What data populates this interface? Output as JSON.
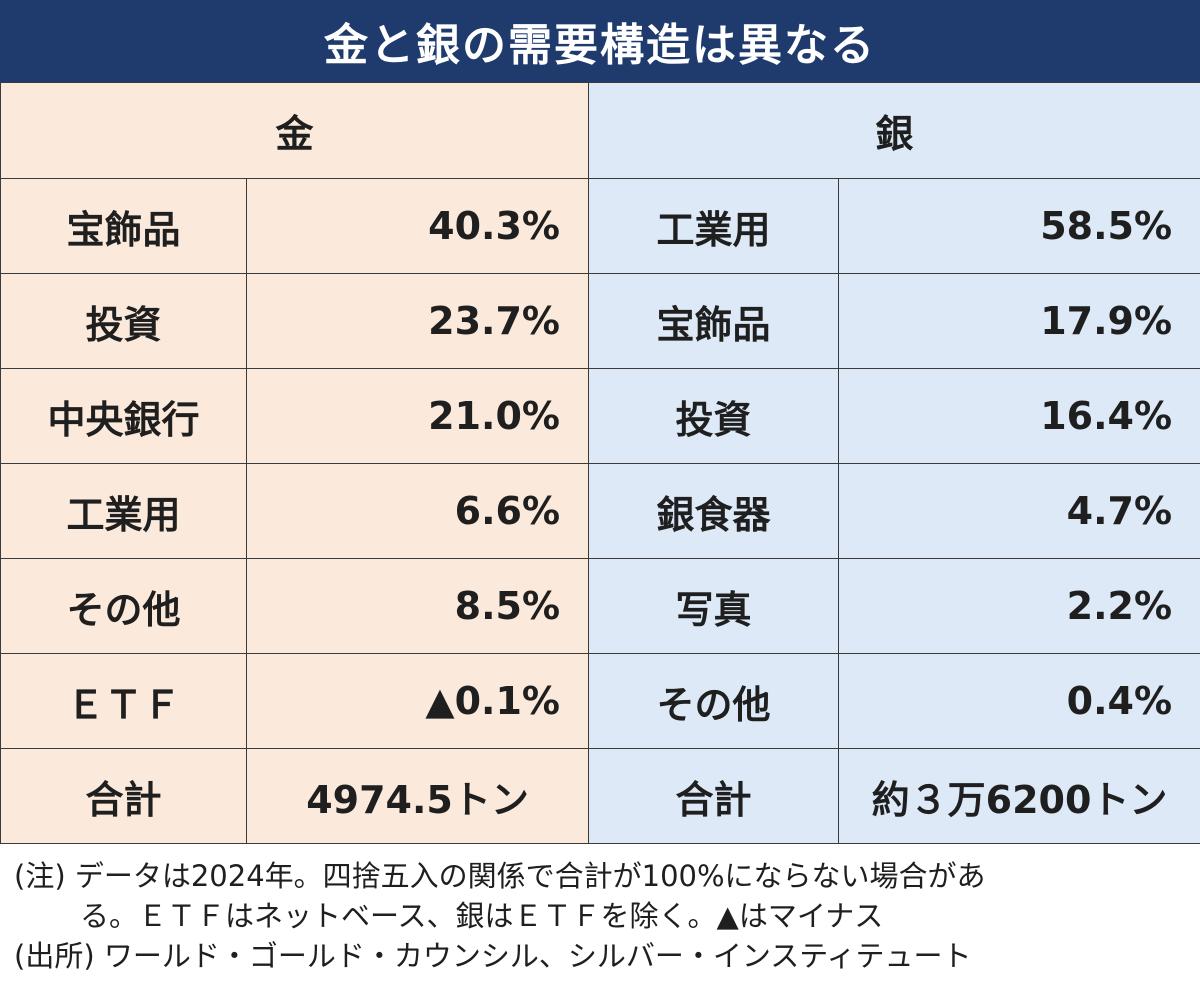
{
  "title": "金と銀の需要構造は異なる",
  "colors": {
    "header_bg": "#1f3b6e",
    "gold_bg": "#fbeadb",
    "silver_bg": "#dde9f7",
    "border": "#3a3a3a"
  },
  "gold": {
    "header": "金",
    "rows": [
      {
        "label": "宝飾品",
        "value": "40.3%"
      },
      {
        "label": "投資",
        "value": "23.7%"
      },
      {
        "label": "中央銀行",
        "value": "21.0%"
      },
      {
        "label": "工業用",
        "value": "6.6%"
      },
      {
        "label": "その他",
        "value": "8.5%"
      },
      {
        "label": "ＥＴＦ",
        "value": "▲0.1%"
      }
    ],
    "total_label": "合計",
    "total_value": "4974.5トン"
  },
  "silver": {
    "header": "銀",
    "rows": [
      {
        "label": "工業用",
        "value": "58.5%"
      },
      {
        "label": "宝飾品",
        "value": "17.9%"
      },
      {
        "label": "投資",
        "value": "16.4%"
      },
      {
        "label": "銀食器",
        "value": "4.7%"
      },
      {
        "label": "写真",
        "value": "2.2%"
      },
      {
        "label": "その他",
        "value": "0.4%"
      }
    ],
    "total_label": "合計",
    "total_value": "約３万6200トン"
  },
  "notes": {
    "line1": "(注) データは2024年。四捨五入の関係で合計が100%にならない場合があ",
    "line2": "る。ＥＴＦはネットベース、銀はＥＴＦを除く。▲はマイナス",
    "source": "(出所) ワールド・ゴールド・カウンシル、シルバー・インスティテュート"
  }
}
